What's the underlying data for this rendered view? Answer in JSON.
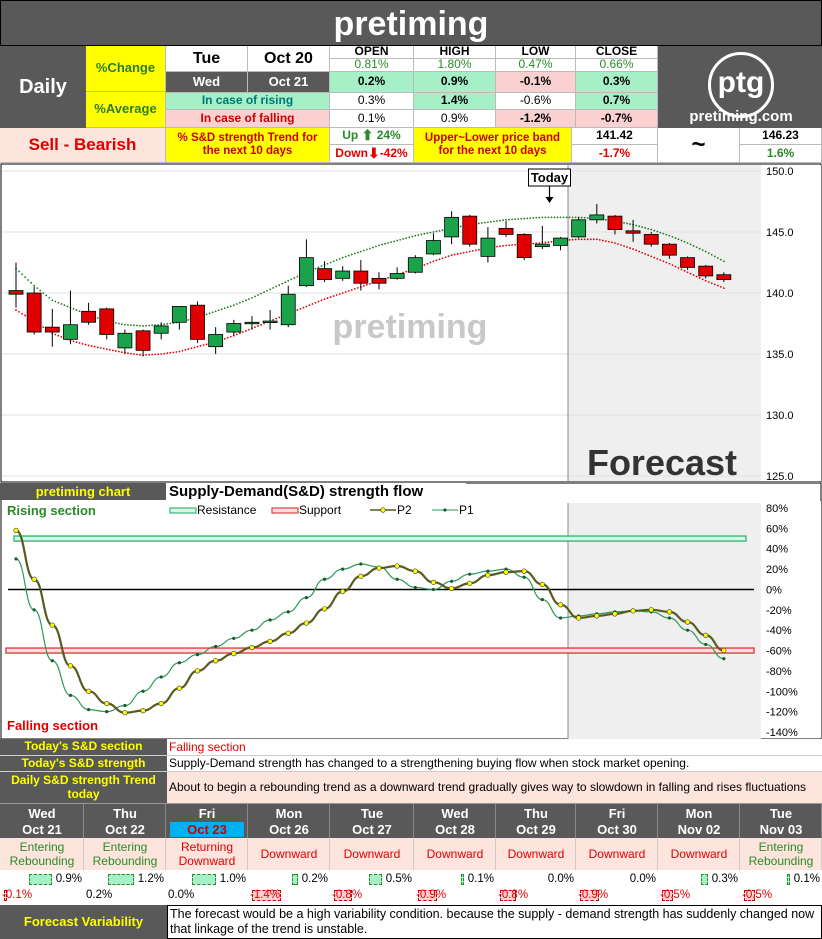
{
  "title": "pretiming",
  "header": {
    "period": "Daily",
    "change_label": "%Change",
    "average_label": "%Average",
    "day1": "Tue",
    "date1": "Oct 20",
    "day2": "Wed",
    "date2": "Oct 21",
    "rising_label": "In case of rising",
    "falling_label": "In case of falling",
    "cols": [
      "OPEN",
      "HIGH",
      "LOW",
      "CLOSE"
    ],
    "row_change": [
      "0.81%",
      "1.80%",
      "0.47%",
      "0.66%"
    ],
    "row_wed": [
      "0.2%",
      "0.9%",
      "-0.1%",
      "0.3%"
    ],
    "row_rising": [
      "0.3%",
      "1.4%",
      "-0.6%",
      "0.7%"
    ],
    "row_falling": [
      "0.1%",
      "0.9%",
      "-1.2%",
      "-0.7%"
    ],
    "logo_text": "ptg",
    "logo_url": "pretiming.com"
  },
  "signal": {
    "text": "Sell - Bearish",
    "trend_label": "% S&D strength Trend for the next 10 days",
    "up_label": "Up",
    "up_value": "24%",
    "down_label": "Down",
    "down_value": "-42%",
    "band_label": "Upper~Lower price band for the next 10 days",
    "band_low": "141.42",
    "band_low_pct": "-1.7%",
    "band_sep": "~",
    "band_high": "146.23",
    "band_high_pct": "1.6%",
    "colors": {
      "signal_bg": "#fde4dc",
      "signal_text": "#e00000",
      "up": "#2a8a2a",
      "down": "#e00000"
    }
  },
  "chart_data": [
    {
      "type": "candlestick",
      "title": "",
      "watermark": "pretiming",
      "today_label": "Today",
      "forecast_label": "Forecast",
      "ylim": [
        125,
        150
      ],
      "yticks": [
        "150.0",
        "145.0",
        "140.0",
        "135.0",
        "130.0",
        "125.0"
      ],
      "today_index": 30,
      "candles": [
        {
          "o": 140.2,
          "h": 142.5,
          "l": 138.8,
          "c": 139.9
        },
        {
          "o": 140.0,
          "h": 140.5,
          "l": 136.6,
          "c": 136.8
        },
        {
          "o": 137.2,
          "h": 138.7,
          "l": 135.6,
          "c": 136.8
        },
        {
          "o": 136.2,
          "h": 140.2,
          "l": 135.8,
          "c": 137.4
        },
        {
          "o": 138.5,
          "h": 139.2,
          "l": 137.4,
          "c": 137.6
        },
        {
          "o": 138.7,
          "h": 138.8,
          "l": 136.2,
          "c": 136.6
        },
        {
          "o": 135.5,
          "h": 137.0,
          "l": 135.0,
          "c": 136.7
        },
        {
          "o": 136.9,
          "h": 137.0,
          "l": 134.8,
          "c": 135.3
        },
        {
          "o": 136.7,
          "h": 137.6,
          "l": 136.2,
          "c": 137.3
        },
        {
          "o": 137.6,
          "h": 138.9,
          "l": 137.0,
          "c": 138.9
        },
        {
          "o": 139.0,
          "h": 139.3,
          "l": 135.9,
          "c": 136.2
        },
        {
          "o": 135.6,
          "h": 137.2,
          "l": 135.0,
          "c": 136.6
        },
        {
          "o": 136.8,
          "h": 137.8,
          "l": 136.5,
          "c": 137.5
        },
        {
          "o": 137.6,
          "h": 138.1,
          "l": 137.0,
          "c": 137.6
        },
        {
          "o": 137.6,
          "h": 138.6,
          "l": 137.0,
          "c": 137.7
        },
        {
          "o": 137.4,
          "h": 140.6,
          "l": 137.2,
          "c": 139.9
        },
        {
          "o": 140.6,
          "h": 144.4,
          "l": 140.5,
          "c": 142.9
        },
        {
          "o": 142.0,
          "h": 142.6,
          "l": 140.9,
          "c": 141.1
        },
        {
          "o": 141.2,
          "h": 142.2,
          "l": 141.0,
          "c": 141.8
        },
        {
          "o": 141.8,
          "h": 142.7,
          "l": 140.2,
          "c": 140.8
        },
        {
          "o": 141.2,
          "h": 141.7,
          "l": 140.3,
          "c": 140.8
        },
        {
          "o": 141.2,
          "h": 142.1,
          "l": 141.1,
          "c": 141.6
        },
        {
          "o": 141.7,
          "h": 143.1,
          "l": 141.6,
          "c": 142.9
        },
        {
          "o": 143.2,
          "h": 144.9,
          "l": 143.1,
          "c": 144.3
        },
        {
          "o": 144.6,
          "h": 146.7,
          "l": 144.0,
          "c": 146.2
        },
        {
          "o": 146.3,
          "h": 146.4,
          "l": 143.8,
          "c": 144.0
        },
        {
          "o": 143.0,
          "h": 145.4,
          "l": 142.5,
          "c": 144.5
        },
        {
          "o": 145.3,
          "h": 145.9,
          "l": 144.6,
          "c": 144.8
        },
        {
          "o": 144.8,
          "h": 144.9,
          "l": 142.7,
          "c": 142.9
        },
        {
          "o": 143.8,
          "h": 145.5,
          "l": 143.6,
          "c": 144.0
        },
        {
          "o": 143.9,
          "h": 144.6,
          "l": 143.5,
          "c": 144.5
        },
        {
          "o": 144.6,
          "h": 146.2,
          "l": 144.5,
          "c": 146.0
        },
        {
          "o": 146.0,
          "h": 147.3,
          "l": 145.7,
          "c": 146.4
        },
        {
          "o": 146.3,
          "h": 146.4,
          "l": 144.8,
          "c": 145.2
        },
        {
          "o": 145.1,
          "h": 146.0,
          "l": 144.2,
          "c": 144.9
        },
        {
          "o": 144.8,
          "h": 145.0,
          "l": 143.8,
          "c": 144.0
        },
        {
          "o": 144.0,
          "h": 144.1,
          "l": 142.8,
          "c": 143.1
        },
        {
          "o": 142.9,
          "h": 143.0,
          "l": 141.9,
          "c": 142.1
        },
        {
          "o": 142.2,
          "h": 142.3,
          "l": 141.2,
          "c": 141.4
        },
        {
          "o": 141.5,
          "h": 141.7,
          "l": 140.9,
          "c": 141.1
        }
      ],
      "upper_band": [
        142.0,
        140.6,
        139.4,
        138.8,
        138.2,
        137.7,
        137.4,
        137.3,
        137.4,
        137.6,
        138.0,
        138.5,
        139.0,
        139.6,
        140.3,
        141.0,
        141.7,
        142.3,
        142.9,
        143.4,
        143.9,
        144.3,
        144.7,
        145.0,
        145.3,
        145.6,
        145.8,
        146.0,
        146.1,
        146.2,
        146.2,
        146.2,
        146.1,
        145.9,
        145.6,
        145.2,
        144.7,
        144.1,
        143.4,
        142.6
      ],
      "lower_band": [
        138.6,
        137.7,
        136.7,
        136.1,
        135.7,
        135.4,
        135.1,
        134.9,
        135.0,
        135.2,
        135.6,
        136.0,
        136.5,
        137.1,
        137.7,
        138.3,
        138.9,
        139.5,
        140.0,
        140.5,
        141.0,
        141.5,
        142.0,
        142.6,
        143.1,
        143.4,
        143.7,
        143.9,
        144.0,
        144.1,
        144.3,
        144.4,
        144.4,
        144.1,
        143.6,
        143.0,
        142.4,
        141.7,
        141.0,
        140.4
      ]
    },
    {
      "type": "line",
      "title": "Supply-Demand(S&D)  strength flow",
      "ylim": [
        -140,
        80
      ],
      "yticks": [
        "80%",
        "60%",
        "40%",
        "20%",
        "0%",
        "-20%",
        "-40%",
        "-60%",
        "-80%",
        "-100%",
        "-120%",
        "-140%"
      ],
      "resistance": 50,
      "support": -60,
      "legend": [
        "Resistance",
        "Support",
        "P2",
        "P1"
      ],
      "series": [
        {
          "name": "P2",
          "values": [
            58,
            10,
            -35,
            -75,
            -100,
            -112,
            -121,
            -119,
            -112,
            -97,
            -80,
            -70,
            -63,
            -57,
            -51,
            -43,
            -33,
            -19,
            -2,
            13,
            21,
            23,
            18,
            7,
            1,
            6,
            14,
            17,
            18,
            5,
            -15,
            -28,
            -26,
            -24,
            -21,
            -20,
            -22,
            -32,
            -45,
            -60
          ]
        },
        {
          "name": "P1",
          "values": [
            30,
            -20,
            -70,
            -104,
            -118,
            -120,
            -114,
            -100,
            -86,
            -72,
            -64,
            -56,
            -48,
            -40,
            -30,
            -22,
            -8,
            10,
            20,
            25,
            22,
            10,
            2,
            0,
            8,
            15,
            18,
            20,
            12,
            -10,
            -28,
            -26,
            -24,
            -22,
            -21,
            -22,
            -28,
            -40,
            -54,
            -68
          ]
        }
      ]
    }
  ],
  "chart_labels": {
    "brand": "pretiming chart",
    "rising_section": "Rising section",
    "falling_section": "Falling section"
  },
  "info": [
    {
      "label": "Today's S&D section",
      "text": "Falling section"
    },
    {
      "label": "Today's S&D strength",
      "text": "Supply-Demand strength has changed to a strengthening buying flow when stock market opening."
    },
    {
      "label": "Daily S&D strength Trend today",
      "text": "About to begin a rebounding trend as a downward trend gradually gives way to slowdown in falling and rises fluctuations"
    }
  ],
  "forecast": {
    "days": [
      {
        "day": "Wed",
        "date": "Oct 21",
        "trend": "Entering Rebounding",
        "up": "0.9%",
        "up_frac": 0.45,
        "down": "-0.1%",
        "down_frac": 0.05
      },
      {
        "day": "Thu",
        "date": "Oct 22",
        "trend": "Entering Rebounding",
        "up": "1.2%",
        "up_frac": 0.55,
        "down": "0.2%",
        "down_frac": 0.0
      },
      {
        "day": "Fri",
        "date": "Oct 23",
        "trend": "Returning Downward",
        "up": "1.0%",
        "up_frac": 0.5,
        "down": "0.0%",
        "down_frac": 0.0,
        "highlight": true
      },
      {
        "day": "Mon",
        "date": "Oct 26",
        "trend": "Downward",
        "up": "0.2%",
        "up_frac": 0.12,
        "down": "-1.4%",
        "down_frac": 0.6
      },
      {
        "day": "Tue",
        "date": "Oct 27",
        "trend": "Downward",
        "up": "0.5%",
        "up_frac": 0.25,
        "down": "-0.8%",
        "down_frac": 0.35
      },
      {
        "day": "Wed",
        "date": "Oct 28",
        "trend": "Downward",
        "up": "0.1%",
        "up_frac": 0.07,
        "down": "-0.9%",
        "down_frac": 0.4
      },
      {
        "day": "Thu",
        "date": "Oct 29",
        "trend": "Downward",
        "up": "0.0%",
        "up_frac": 0.0,
        "down": "-0.8%",
        "down_frac": 0.35
      },
      {
        "day": "Fri",
        "date": "Oct 30",
        "trend": "Downward",
        "up": "0.0%",
        "up_frac": 0.0,
        "down": "-0.9%",
        "down_frac": 0.4
      },
      {
        "day": "Mon",
        "date": "Nov 02",
        "trend": "Downward",
        "up": "0.3%",
        "up_frac": 0.15,
        "down": "-0.5%",
        "down_frac": 0.22
      },
      {
        "day": "Tue",
        "date": "Nov 03",
        "trend": "Entering Rebounding",
        "up": "0.1%",
        "up_frac": 0.07,
        "down": "-0.5%",
        "down_frac": 0.22
      }
    ],
    "variability_label": "Forecast Variability",
    "variability_text": "The forecast would be a high variability condition. because the supply - demand strength has suddenly changed now that linkage of the trend is unstable."
  }
}
